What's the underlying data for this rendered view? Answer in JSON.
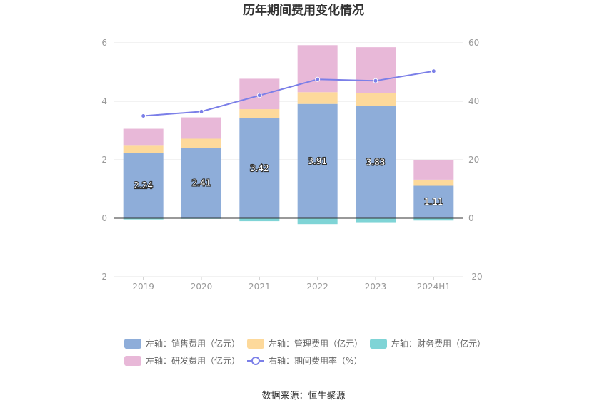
{
  "title": "历年期间费用变化情况",
  "source": "数据来源：恒生聚源",
  "colors": {
    "sales": "#8eadd9",
    "admin": "#fdd99b",
    "finance": "#7fd4d6",
    "rd": "#e8b8d8",
    "ratio": "#7b7fe8",
    "grid": "#e6e6e6",
    "axis": "#333333"
  },
  "legend": [
    {
      "key": "sales",
      "label": "左轴：销售费用（亿元）",
      "type": "bar"
    },
    {
      "key": "admin",
      "label": "左轴：管理费用（亿元）",
      "type": "bar"
    },
    {
      "key": "finance",
      "label": "左轴：财务费用（亿元）",
      "type": "bar"
    },
    {
      "key": "rd",
      "label": "左轴：研发费用（亿元）",
      "type": "bar"
    },
    {
      "key": "ratio",
      "label": "右轴：期间费用率（%）",
      "type": "line"
    }
  ],
  "chart_data": {
    "type": "bar",
    "stacked": true,
    "categories": [
      "2019",
      "2020",
      "2021",
      "2022",
      "2023",
      "2024H1"
    ],
    "series": [
      {
        "key": "sales",
        "name": "左轴：销售费用（亿元）",
        "axis": "left",
        "values": [
          2.24,
          2.41,
          3.42,
          3.91,
          3.83,
          1.11
        ],
        "data_labels": [
          "2.24",
          "2.41",
          "3.42",
          "3.91",
          "3.83",
          "1.11"
        ]
      },
      {
        "key": "admin",
        "name": "左轴：管理费用（亿元）",
        "axis": "left",
        "values": [
          0.24,
          0.31,
          0.31,
          0.4,
          0.44,
          0.21
        ]
      },
      {
        "key": "finance",
        "name": "左轴：财务费用（亿元）",
        "axis": "left",
        "values": [
          -0.04,
          -0.02,
          -0.1,
          -0.2,
          -0.16,
          -0.08
        ]
      },
      {
        "key": "rd",
        "name": "左轴：研发费用（亿元）",
        "axis": "left",
        "values": [
          0.58,
          0.73,
          1.04,
          1.61,
          1.58,
          0.68
        ]
      },
      {
        "key": "ratio",
        "name": "右轴：期间费用率（%）",
        "axis": "right",
        "type": "line",
        "values": [
          35.0,
          36.5,
          42.0,
          47.5,
          47.0,
          50.3
        ]
      }
    ],
    "y_left": {
      "min": -2,
      "max": 6,
      "ticks": [
        "-2",
        "0",
        "2",
        "4",
        "6"
      ]
    },
    "y_right": {
      "min": -20,
      "max": 60,
      "ticks": [
        "-20",
        "0",
        "20",
        "40",
        "60"
      ]
    },
    "grid": true,
    "legend_position": "bottom"
  }
}
